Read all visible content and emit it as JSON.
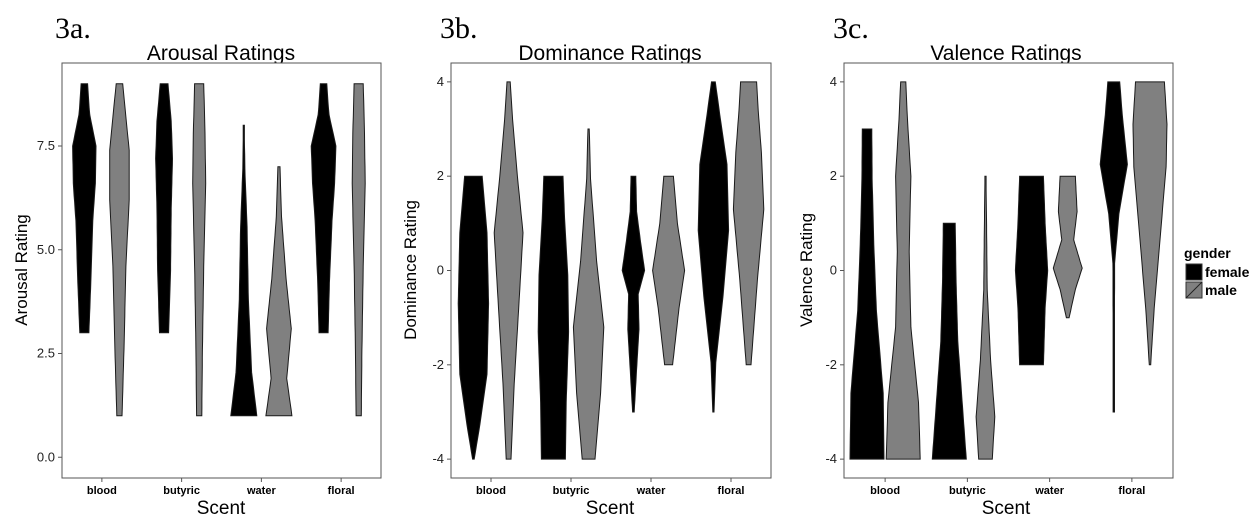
{
  "chart_data": [
    {
      "type": "violin",
      "panel_label": "3a.",
      "title": "Arousal Ratings",
      "xlabel": "Scent",
      "ylabel": "Arousal Rating",
      "categories": [
        "blood",
        "butyric",
        "water",
        "floral"
      ],
      "ylim": [
        -0.5,
        9.5
      ],
      "yticks": [
        0.0,
        2.5,
        5.0,
        7.5
      ],
      "ytick_labels": [
        "0.0",
        "2.5",
        "5.0",
        "7.5"
      ],
      "series": [
        {
          "name": "female",
          "color": "#000000",
          "range": [
            [
              3,
              9
            ],
            [
              3,
              9
            ],
            [
              1,
              8
            ],
            [
              3,
              9
            ]
          ]
        },
        {
          "name": "male",
          "color": "#808080",
          "range": [
            [
              1,
              9
            ],
            [
              1,
              9
            ],
            [
              1,
              7
            ],
            [
              1,
              9
            ]
          ]
        }
      ]
    },
    {
      "type": "violin",
      "panel_label": "3b.",
      "title": "Dominance Ratings",
      "xlabel": "Scent",
      "ylabel": "Dominance Rating",
      "categories": [
        "blood",
        "butyric",
        "water",
        "floral"
      ],
      "ylim": [
        -4.4,
        4.4
      ],
      "yticks": [
        -4,
        -2,
        0,
        2,
        4
      ],
      "ytick_labels": [
        "-4",
        "-2",
        "0",
        "2",
        "4"
      ],
      "series": [
        {
          "name": "female",
          "color": "#000000",
          "range": [
            [
              -4,
              2
            ],
            [
              -4,
              2
            ],
            [
              -3,
              2
            ],
            [
              -3,
              4
            ]
          ]
        },
        {
          "name": "male",
          "color": "#808080",
          "range": [
            [
              -4,
              4
            ],
            [
              -4,
              3
            ],
            [
              -2,
              2
            ],
            [
              -2,
              4
            ]
          ]
        }
      ]
    },
    {
      "type": "violin",
      "panel_label": "3c.",
      "title": "Valence Ratings",
      "xlabel": "Scent",
      "ylabel": "Valence Rating",
      "categories": [
        "blood",
        "butyric",
        "water",
        "floral"
      ],
      "ylim": [
        -4.4,
        4.4
      ],
      "yticks": [
        -4,
        -2,
        0,
        2,
        4
      ],
      "ytick_labels": [
        "-4",
        "-2",
        "0",
        "2",
        "4"
      ],
      "series": [
        {
          "name": "female",
          "color": "#000000",
          "range": [
            [
              -4,
              3
            ],
            [
              -4,
              1
            ],
            [
              -2,
              2
            ],
            [
              -3,
              4
            ]
          ]
        },
        {
          "name": "male",
          "color": "#808080",
          "range": [
            [
              -4,
              4
            ],
            [
              -4,
              2
            ],
            [
              -1,
              2
            ],
            [
              -2,
              4
            ]
          ]
        }
      ]
    }
  ],
  "legend": {
    "title": "gender",
    "items": [
      {
        "label": "female",
        "color": "#000000"
      },
      {
        "label": "male",
        "color": "#808080"
      }
    ]
  }
}
